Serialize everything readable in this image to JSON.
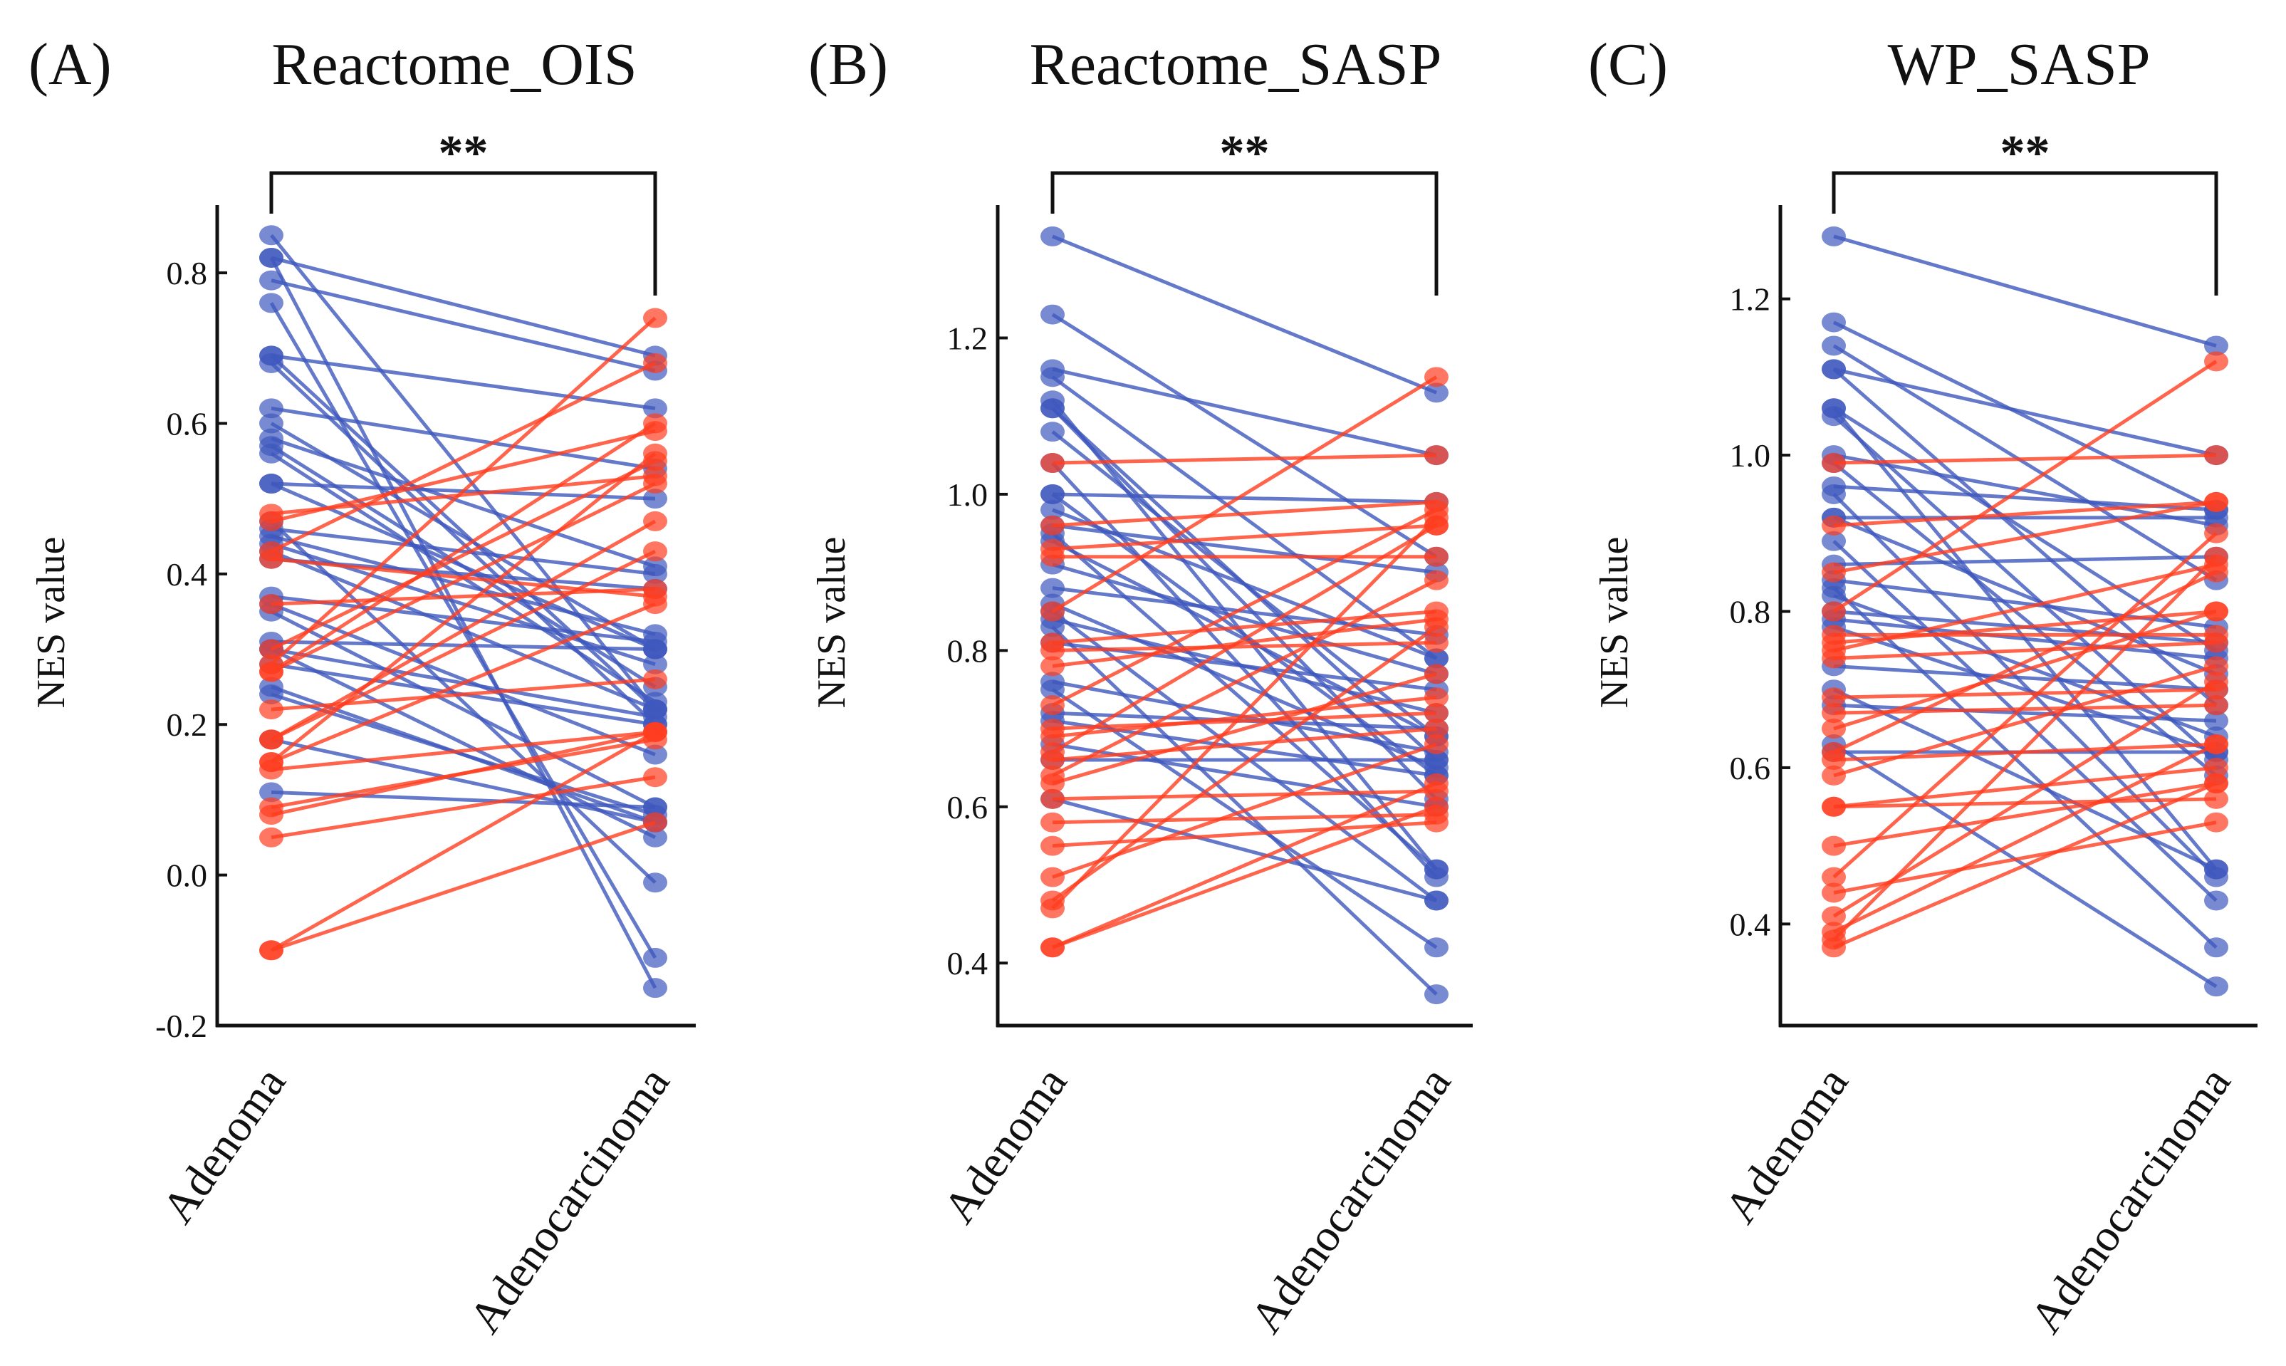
{
  "colors": {
    "decreased": "#3f58bd",
    "increased": "#ff3d1f",
    "axis": "#111111"
  },
  "chart_data": [
    {
      "type": "line",
      "panel_label": "(A)",
      "title": "Reactome_OIS",
      "ylabel": "NES value",
      "categories": [
        "Adenoma",
        "Adenocarcinoma"
      ],
      "significance": "**",
      "ylim": [
        -0.2,
        0.89
      ],
      "yticks": [
        -0.2,
        0.0,
        0.2,
        0.4,
        0.6,
        0.8
      ],
      "ytick_labels": [
        "-0.2",
        "0.0",
        "0.2",
        "0.4",
        "0.6",
        "0.8"
      ],
      "series": [
        {
          "name": "decreased",
          "pairs": [
            [
              0.85,
              0.22
            ],
            [
              0.82,
              0.69
            ],
            [
              0.82,
              -0.15
            ],
            [
              0.79,
              0.67
            ],
            [
              0.76,
              -0.11
            ],
            [
              0.69,
              0.62
            ],
            [
              0.69,
              0.22
            ],
            [
              0.68,
              0.2
            ],
            [
              0.62,
              0.54
            ],
            [
              0.6,
              0.3
            ],
            [
              0.58,
              0.41
            ],
            [
              0.57,
              0.25
            ],
            [
              0.56,
              0.23
            ],
            [
              0.52,
              0.5
            ],
            [
              0.52,
              0.3
            ],
            [
              0.47,
              -0.01
            ],
            [
              0.46,
              0.4
            ],
            [
              0.45,
              0.32
            ],
            [
              0.44,
              0.28
            ],
            [
              0.43,
              0.22
            ],
            [
              0.42,
              0.38
            ],
            [
              0.37,
              0.31
            ],
            [
              0.36,
              0.16
            ],
            [
              0.35,
              0.09
            ],
            [
              0.31,
              0.3
            ],
            [
              0.3,
              0.21
            ],
            [
              0.3,
              0.05
            ],
            [
              0.28,
              0.2
            ],
            [
              0.25,
              0.07
            ],
            [
              0.24,
              0.08
            ],
            [
              0.18,
              0.07
            ],
            [
              0.11,
              0.09
            ]
          ]
        },
        {
          "name": "increased",
          "pairs": [
            [
              0.48,
              0.53
            ],
            [
              0.47,
              0.59
            ],
            [
              0.43,
              0.68
            ],
            [
              0.42,
              0.37
            ],
            [
              0.36,
              0.38
            ],
            [
              0.3,
              0.55
            ],
            [
              0.28,
              0.74
            ],
            [
              0.27,
              0.6
            ],
            [
              0.27,
              0.52
            ],
            [
              0.22,
              0.26
            ],
            [
              0.18,
              0.47
            ],
            [
              0.18,
              0.43
            ],
            [
              0.15,
              0.56
            ],
            [
              0.15,
              0.36
            ],
            [
              0.14,
              0.19
            ],
            [
              0.09,
              0.18
            ],
            [
              0.08,
              0.19
            ],
            [
              0.05,
              0.13
            ],
            [
              -0.1,
              0.19
            ],
            [
              -0.1,
              0.07
            ]
          ]
        }
      ]
    },
    {
      "type": "line",
      "panel_label": "(B)",
      "title": "Reactome_SASP",
      "ylabel": "NES value",
      "categories": [
        "Adenoma",
        "Adenocarcinoma"
      ],
      "significance": "**",
      "ylim": [
        0.32,
        1.37
      ],
      "yticks": [
        0.4,
        0.6,
        0.8,
        1.0,
        1.2
      ],
      "ytick_labels": [
        "0.4",
        "0.6",
        "0.8",
        "1.0",
        "1.2"
      ],
      "series": [
        {
          "name": "decreased",
          "pairs": [
            [
              1.33,
              1.13
            ],
            [
              1.23,
              0.92
            ],
            [
              1.16,
              1.05
            ],
            [
              1.15,
              0.79
            ],
            [
              1.12,
              0.52
            ],
            [
              1.11,
              0.61
            ],
            [
              1.11,
              0.66
            ],
            [
              1.08,
              0.69
            ],
            [
              1.04,
              0.51
            ],
            [
              1.0,
              0.99
            ],
            [
              1.0,
              0.64
            ],
            [
              0.98,
              0.79
            ],
            [
              0.96,
              0.9
            ],
            [
              0.95,
              0.52
            ],
            [
              0.94,
              0.69
            ],
            [
              0.91,
              0.77
            ],
            [
              0.88,
              0.82
            ],
            [
              0.86,
              0.65
            ],
            [
              0.85,
              0.48
            ],
            [
              0.84,
              0.72
            ],
            [
              0.83,
              0.36
            ],
            [
              0.81,
              0.75
            ],
            [
              0.76,
              0.67
            ],
            [
              0.75,
              0.42
            ],
            [
              0.72,
              0.7
            ],
            [
              0.71,
              0.64
            ],
            [
              0.68,
              0.6
            ],
            [
              0.66,
              0.66
            ],
            [
              0.61,
              0.48
            ]
          ]
        },
        {
          "name": "increased",
          "pairs": [
            [
              1.04,
              1.05
            ],
            [
              0.96,
              0.99
            ],
            [
              0.93,
              0.96
            ],
            [
              0.92,
              0.92
            ],
            [
              0.85,
              1.15
            ],
            [
              0.81,
              0.85
            ],
            [
              0.8,
              0.81
            ],
            [
              0.78,
              0.84
            ],
            [
              0.73,
              0.98
            ],
            [
              0.7,
              0.72
            ],
            [
              0.69,
              0.74
            ],
            [
              0.67,
              0.96
            ],
            [
              0.66,
              0.7
            ],
            [
              0.64,
              0.89
            ],
            [
              0.63,
              0.77
            ],
            [
              0.61,
              0.62
            ],
            [
              0.58,
              0.59
            ],
            [
              0.55,
              0.58
            ],
            [
              0.51,
              0.68
            ],
            [
              0.48,
              0.83
            ],
            [
              0.47,
              0.97
            ],
            [
              0.42,
              0.63
            ],
            [
              0.42,
              0.6
            ]
          ]
        }
      ]
    },
    {
      "type": "line",
      "panel_label": "(C)",
      "title": "WP_SASP",
      "ylabel": "NES value",
      "categories": [
        "Adenoma",
        "Adenocarcinoma"
      ],
      "significance": "**",
      "ylim": [
        0.27,
        1.32
      ],
      "yticks": [
        0.4,
        0.6,
        0.8,
        1.0,
        1.2
      ],
      "ytick_labels": [
        "0.4",
        "0.6",
        "0.8",
        "1.0",
        "1.2"
      ],
      "series": [
        {
          "name": "decreased",
          "pairs": [
            [
              1.28,
              1.14
            ],
            [
              1.17,
              0.93
            ],
            [
              1.14,
              0.84
            ],
            [
              1.11,
              1.0
            ],
            [
              1.11,
              0.68
            ],
            [
              1.06,
              0.47
            ],
            [
              1.06,
              0.75
            ],
            [
              1.05,
              0.61
            ],
            [
              1.0,
              0.91
            ],
            [
              0.99,
              0.59
            ],
            [
              0.96,
              0.93
            ],
            [
              0.95,
              0.46
            ],
            [
              0.92,
              0.92
            ],
            [
              0.92,
              0.72
            ],
            [
              0.89,
              0.43
            ],
            [
              0.86,
              0.87
            ],
            [
              0.84,
              0.78
            ],
            [
              0.83,
              0.37
            ],
            [
              0.82,
              0.64
            ],
            [
              0.8,
              0.76
            ],
            [
              0.79,
              0.74
            ],
            [
              0.78,
              0.62
            ],
            [
              0.73,
              0.7
            ],
            [
              0.7,
              0.47
            ],
            [
              0.68,
              0.66
            ],
            [
              0.63,
              0.32
            ],
            [
              0.62,
              0.62
            ]
          ]
        },
        {
          "name": "increased",
          "pairs": [
            [
              0.99,
              1.0
            ],
            [
              0.91,
              0.94
            ],
            [
              0.85,
              0.94
            ],
            [
              0.8,
              1.12
            ],
            [
              0.77,
              0.77
            ],
            [
              0.76,
              0.8
            ],
            [
              0.75,
              0.86
            ],
            [
              0.74,
              0.76
            ],
            [
              0.69,
              0.7
            ],
            [
              0.67,
              0.68
            ],
            [
              0.65,
              0.8
            ],
            [
              0.62,
              0.85
            ],
            [
              0.61,
              0.63
            ],
            [
              0.59,
              0.73
            ],
            [
              0.55,
              0.56
            ],
            [
              0.55,
              0.6
            ],
            [
              0.5,
              0.58
            ],
            [
              0.46,
              0.9
            ],
            [
              0.44,
              0.53
            ],
            [
              0.41,
              0.71
            ],
            [
              0.39,
              0.63
            ],
            [
              0.38,
              0.87
            ],
            [
              0.37,
              0.58
            ]
          ]
        }
      ]
    }
  ]
}
